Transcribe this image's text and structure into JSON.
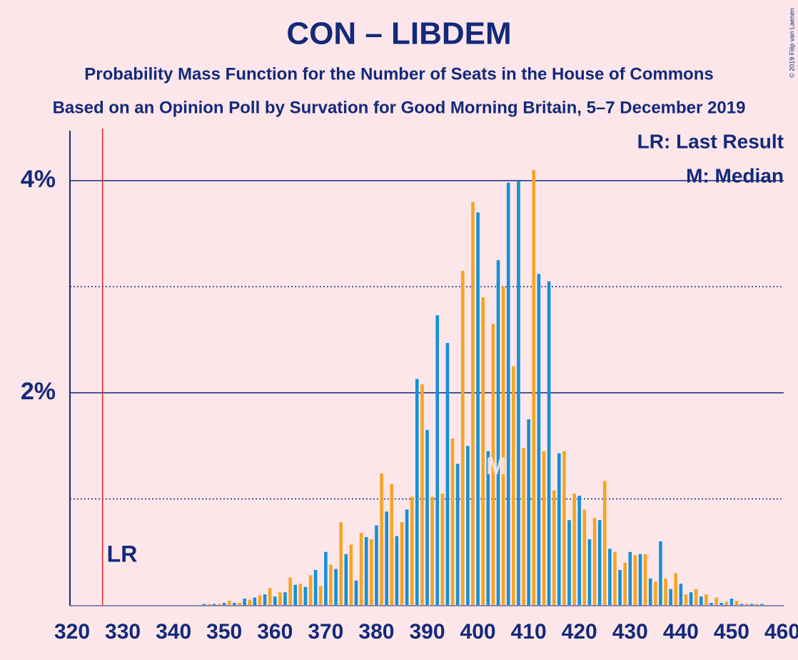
{
  "chart_data": {
    "type": "bar",
    "title": "CON – LIBDEM",
    "subtitle": "Probability Mass Function for the Number of Seats in the House of Commons",
    "subtitle2": "Based on an Opinion Poll by Survation for Good Morning Britain, 5–7 December 2019",
    "copyright": "© 2019 Filip van Laenen",
    "legend_lr": "LR: Last Result",
    "legend_m": "M: Median",
    "last_result": 326,
    "last_result_label": "LR",
    "median": 404,
    "median_label": "M",
    "bar_colors": [
      "#1490d6",
      "#f6a423"
    ],
    "x": [
      320,
      321,
      322,
      323,
      324,
      325,
      326,
      327,
      328,
      329,
      330,
      331,
      332,
      333,
      334,
      335,
      336,
      337,
      338,
      339,
      340,
      341,
      342,
      343,
      344,
      345,
      346,
      347,
      348,
      349,
      350,
      351,
      352,
      353,
      354,
      355,
      356,
      357,
      358,
      359,
      360,
      361,
      362,
      363,
      364,
      365,
      366,
      367,
      368,
      369,
      370,
      371,
      372,
      373,
      374,
      375,
      376,
      377,
      378,
      379,
      380,
      381,
      382,
      383,
      384,
      385,
      386,
      387,
      388,
      389,
      390,
      391,
      392,
      393,
      394,
      395,
      396,
      397,
      398,
      399,
      400,
      401,
      402,
      403,
      404,
      405,
      406,
      407,
      408,
      409,
      410,
      411,
      412,
      413,
      414,
      415,
      416,
      417,
      418,
      419,
      420,
      421,
      422,
      423,
      424,
      425,
      426,
      427,
      428,
      429,
      430,
      431,
      432,
      433,
      434,
      435,
      436,
      437,
      438,
      439,
      440,
      441,
      442,
      443,
      444,
      445,
      446,
      447,
      448,
      449,
      450,
      451,
      452,
      453,
      454,
      455,
      456,
      457,
      458,
      459,
      460
    ],
    "values": [
      0,
      0,
      0,
      0,
      0,
      0,
      0,
      0,
      0,
      0,
      0,
      0,
      0,
      0,
      0,
      0,
      0,
      0,
      0,
      0,
      0,
      0,
      0,
      0,
      0,
      0,
      0.01,
      0.01,
      0.01,
      0.01,
      0.02,
      0.04,
      0.02,
      0.02,
      0.06,
      0.05,
      0.07,
      0.09,
      0.1,
      0.16,
      0.08,
      0.12,
      0.12,
      0.26,
      0.19,
      0.2,
      0.17,
      0.28,
      0.33,
      0.18,
      0.5,
      0.38,
      0.34,
      0.78,
      0.48,
      0.57,
      0.23,
      0.68,
      0.64,
      0.62,
      0.75,
      1.24,
      0.88,
      1.14,
      0.65,
      0.78,
      0.9,
      1.02,
      2.13,
      2.08,
      1.65,
      1.02,
      2.73,
      1.05,
      2.47,
      1.57,
      1.33,
      3.15,
      1.5,
      3.8,
      3.7,
      2.9,
      1.45,
      2.65,
      3.25,
      3.0,
      3.98,
      2.25,
      4.0,
      1.48,
      1.75,
      4.1,
      3.12,
      1.45,
      3.05,
      1.08,
      1.43,
      1.45,
      0.8,
      1.05,
      1.03,
      0.9,
      0.62,
      0.82,
      0.8,
      1.17,
      0.53,
      0.5,
      0.33,
      0.4,
      0.5,
      0.47,
      0.48,
      0.48,
      0.25,
      0.22,
      0.6,
      0.25,
      0.15,
      0.3,
      0.2,
      0.1,
      0.12,
      0.15,
      0.08,
      0.1,
      0.02,
      0.07,
      0.02,
      0.03,
      0.06,
      0.04,
      0.01,
      0.01,
      0.01,
      0.01,
      0.01,
      0,
      0,
      0,
      0
    ],
    "xlim": [
      320,
      460
    ],
    "xticks": [
      320,
      330,
      340,
      350,
      360,
      370,
      380,
      390,
      400,
      410,
      420,
      430,
      440,
      450,
      460
    ],
    "ylim": [
      0,
      4.47
    ],
    "yticks": [
      {
        "value": 2,
        "label": "2%"
      },
      {
        "value": 4,
        "label": "4%"
      }
    ],
    "minor_yticks": [
      1,
      3
    ],
    "grid": true
  }
}
